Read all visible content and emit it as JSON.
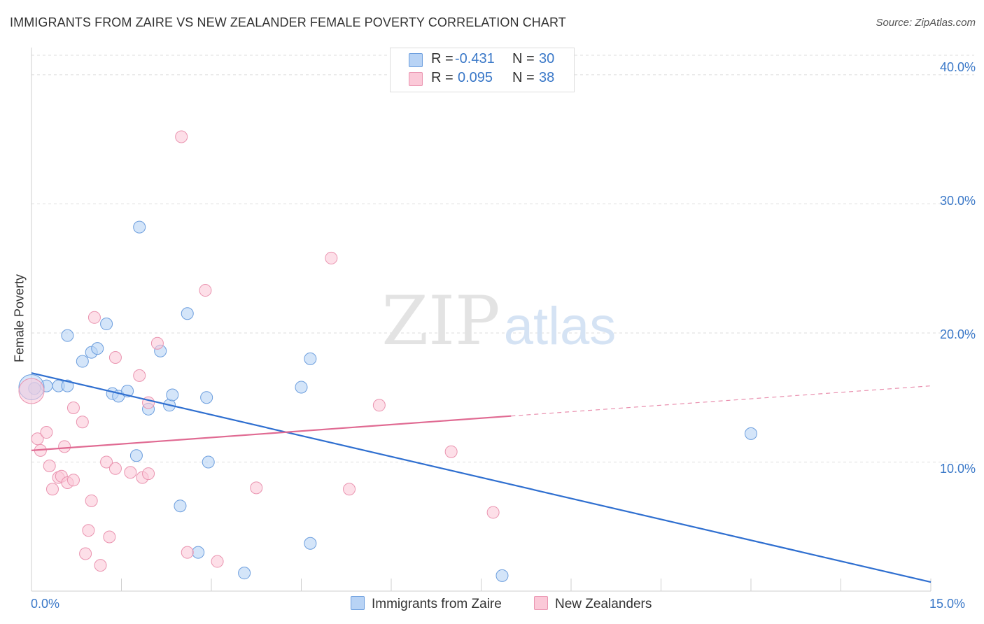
{
  "title": "IMMIGRANTS FROM ZAIRE VS NEW ZEALANDER FEMALE POVERTY CORRELATION CHART",
  "source": "Source: ZipAtlas.com",
  "watermark": {
    "zip": "ZIP",
    "atlas": "atlas"
  },
  "legend_top": {
    "r_label": "R =",
    "n_label": "N =",
    "rows": [
      {
        "r": "-0.431",
        "n": "30",
        "color": "#6c9ede"
      },
      {
        "r": "0.095",
        "n": "38",
        "color": "#ea94b0"
      }
    ]
  },
  "legend_bottom": [
    "Immigrants from Zaire",
    "New Zealanders"
  ],
  "chart_data": {
    "type": "scatter",
    "title": "IMMIGRANTS FROM ZAIRE VS NEW ZEALANDER FEMALE POVERTY CORRELATION CHART",
    "xlabel": "",
    "ylabel": "Female Poverty",
    "xlim": [
      0,
      15
    ],
    "ylim": [
      0,
      42
    ],
    "x_ticks": [
      "0.0%",
      "15.0%"
    ],
    "y_ticks": [
      {
        "value": 10,
        "label": "10.0%"
      },
      {
        "value": 20,
        "label": "20.0%"
      },
      {
        "value": 30,
        "label": "30.0%"
      },
      {
        "value": 40,
        "label": "40.0%"
      }
    ],
    "grid": true,
    "legend_position": "top-center",
    "series": [
      {
        "name": "Immigrants from Zaire",
        "color": "#6c9ede",
        "fill": "#b8d3f5",
        "r": -0.431,
        "n": 30,
        "trend": {
          "x0": 0,
          "y0": 16.9,
          "x1": 15,
          "y1": 0.7,
          "dashed_from": null
        },
        "points": [
          [
            0.05,
            15.7
          ],
          [
            0.25,
            15.9
          ],
          [
            0.45,
            15.9
          ],
          [
            0.6,
            15.9
          ],
          [
            0.6,
            19.8
          ],
          [
            0.85,
            17.8
          ],
          [
            1.0,
            18.5
          ],
          [
            1.1,
            18.8
          ],
          [
            1.25,
            20.7
          ],
          [
            1.35,
            15.3
          ],
          [
            1.45,
            15.1
          ],
          [
            1.6,
            15.5
          ],
          [
            1.75,
            10.5
          ],
          [
            1.8,
            28.2
          ],
          [
            1.95,
            14.1
          ],
          [
            2.15,
            18.6
          ],
          [
            2.3,
            14.4
          ],
          [
            2.35,
            15.2
          ],
          [
            2.48,
            6.6
          ],
          [
            2.6,
            21.5
          ],
          [
            2.78,
            3.0
          ],
          [
            2.92,
            15.0
          ],
          [
            2.95,
            10.0
          ],
          [
            3.55,
            1.4
          ],
          [
            4.5,
            15.8
          ],
          [
            4.65,
            18.0
          ],
          [
            4.65,
            3.7
          ],
          [
            7.85,
            1.2
          ],
          [
            12.0,
            12.2
          ],
          [
            0.0,
            15.8
          ]
        ]
      },
      {
        "name": "New Zealanders",
        "color": "#ea94b0",
        "fill": "#fbc9d8",
        "r": 0.095,
        "n": 38,
        "trend": {
          "x0": 0,
          "y0": 10.9,
          "x1": 15,
          "y1": 15.9,
          "dashed_from": 8.0
        },
        "points": [
          [
            0.0,
            15.5
          ],
          [
            0.1,
            11.8
          ],
          [
            0.15,
            10.9
          ],
          [
            0.25,
            12.3
          ],
          [
            0.3,
            9.7
          ],
          [
            0.35,
            7.9
          ],
          [
            0.45,
            8.8
          ],
          [
            0.5,
            8.9
          ],
          [
            0.55,
            11.2
          ],
          [
            0.6,
            8.4
          ],
          [
            0.7,
            14.2
          ],
          [
            0.7,
            8.6
          ],
          [
            0.85,
            13.1
          ],
          [
            0.9,
            2.9
          ],
          [
            0.95,
            4.7
          ],
          [
            1.0,
            7.0
          ],
          [
            1.05,
            21.2
          ],
          [
            1.15,
            2.0
          ],
          [
            1.25,
            10.0
          ],
          [
            1.3,
            4.2
          ],
          [
            1.4,
            9.5
          ],
          [
            1.4,
            18.1
          ],
          [
            1.65,
            9.2
          ],
          [
            1.8,
            16.7
          ],
          [
            1.85,
            8.8
          ],
          [
            1.95,
            14.6
          ],
          [
            1.95,
            9.1
          ],
          [
            2.1,
            19.2
          ],
          [
            2.5,
            35.2
          ],
          [
            2.6,
            3.0
          ],
          [
            2.9,
            23.3
          ],
          [
            3.1,
            2.3
          ],
          [
            3.75,
            8.0
          ],
          [
            5.0,
            25.8
          ],
          [
            5.3,
            7.9
          ],
          [
            5.8,
            14.4
          ],
          [
            7.0,
            10.8
          ],
          [
            7.7,
            6.1
          ]
        ]
      }
    ]
  }
}
